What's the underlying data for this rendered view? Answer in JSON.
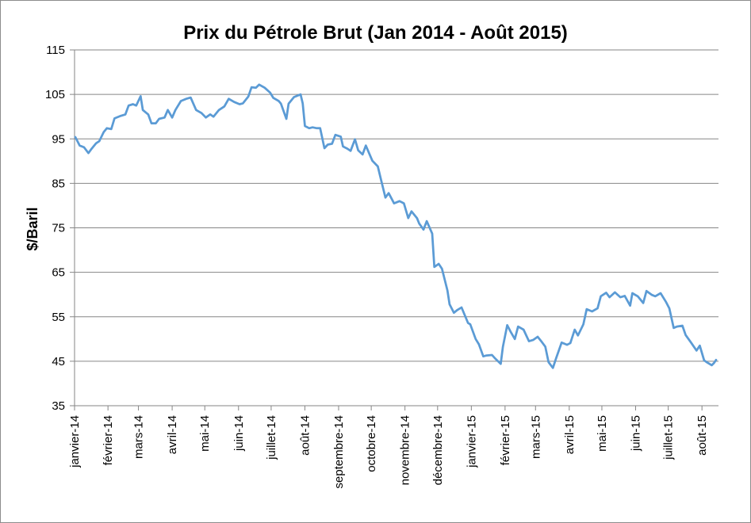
{
  "chart_data": {
    "type": "line",
    "title": "Prix du Pétrole Brut (Jan 2014 - Août 2015)",
    "xlabel": "",
    "ylabel": "$/Baril",
    "ylim": [
      35,
      115
    ],
    "yticks": [
      35,
      45,
      55,
      65,
      75,
      85,
      95,
      105,
      115
    ],
    "grid": true,
    "legend": "none",
    "line_color": "#5b9bd5",
    "xlim": [
      "2014-01-02",
      "2015-08-14"
    ],
    "x_tick_labels": [
      {
        "label": "janvier-14",
        "date": "2014-01-01"
      },
      {
        "label": "février-14",
        "date": "2014-02-01"
      },
      {
        "label": "mars-14",
        "date": "2014-03-01"
      },
      {
        "label": "avril-14",
        "date": "2014-04-01"
      },
      {
        "label": "mai-14",
        "date": "2014-05-01"
      },
      {
        "label": "juin-14",
        "date": "2014-06-01"
      },
      {
        "label": "juillet-14",
        "date": "2014-07-01"
      },
      {
        "label": "août-14",
        "date": "2014-08-01"
      },
      {
        "label": "septembre-14",
        "date": "2014-09-01"
      },
      {
        "label": "octobre-14",
        "date": "2014-10-01"
      },
      {
        "label": "novembre-14",
        "date": "2014-11-01"
      },
      {
        "label": "décembre-14",
        "date": "2014-12-01"
      },
      {
        "label": "janvier-15",
        "date": "2015-01-01"
      },
      {
        "label": "février-15",
        "date": "2015-02-01"
      },
      {
        "label": "mars-15",
        "date": "2015-03-01"
      },
      {
        "label": "avril-15",
        "date": "2015-04-01"
      },
      {
        "label": "mai-15",
        "date": "2015-05-01"
      },
      {
        "label": "juin-15",
        "date": "2015-06-01"
      },
      {
        "label": "juillet-15",
        "date": "2015-07-01"
      },
      {
        "label": "août-15",
        "date": "2015-08-01"
      }
    ],
    "series": [
      {
        "points": [
          [
            "2014-01-02",
            95.4
          ],
          [
            "2014-01-06",
            93.5
          ],
          [
            "2014-01-10",
            93.1
          ],
          [
            "2014-01-14",
            91.8
          ],
          [
            "2014-01-17",
            92.8
          ],
          [
            "2014-01-21",
            94.0
          ],
          [
            "2014-01-24",
            94.5
          ],
          [
            "2014-01-28",
            96.5
          ],
          [
            "2014-01-31",
            97.4
          ],
          [
            "2014-02-04",
            97.2
          ],
          [
            "2014-02-07",
            99.6
          ],
          [
            "2014-02-12",
            100.1
          ],
          [
            "2014-02-17",
            100.5
          ],
          [
            "2014-02-20",
            102.5
          ],
          [
            "2014-02-24",
            102.8
          ],
          [
            "2014-02-27",
            102.5
          ],
          [
            "2014-03-03",
            104.6
          ],
          [
            "2014-03-05",
            101.5
          ],
          [
            "2014-03-10",
            100.5
          ],
          [
            "2014-03-13",
            98.5
          ],
          [
            "2014-03-17",
            98.5
          ],
          [
            "2014-03-20",
            99.5
          ],
          [
            "2014-03-25",
            99.8
          ],
          [
            "2014-03-28",
            101.5
          ],
          [
            "2014-04-01",
            99.8
          ],
          [
            "2014-04-04",
            101.5
          ],
          [
            "2014-04-09",
            103.5
          ],
          [
            "2014-04-14",
            104.0
          ],
          [
            "2014-04-18",
            104.3
          ],
          [
            "2014-04-23",
            101.5
          ],
          [
            "2014-04-28",
            100.8
          ],
          [
            "2014-05-02",
            99.8
          ],
          [
            "2014-05-06",
            100.5
          ],
          [
            "2014-05-09",
            100.0
          ],
          [
            "2014-05-14",
            101.5
          ],
          [
            "2014-05-19",
            102.3
          ],
          [
            "2014-05-23",
            104.0
          ],
          [
            "2014-05-28",
            103.3
          ],
          [
            "2014-06-02",
            102.8
          ],
          [
            "2014-06-05",
            103.0
          ],
          [
            "2014-06-10",
            104.5
          ],
          [
            "2014-06-13",
            106.6
          ],
          [
            "2014-06-17",
            106.5
          ],
          [
            "2014-06-20",
            107.2
          ],
          [
            "2014-06-25",
            106.5
          ],
          [
            "2014-06-30",
            105.4
          ],
          [
            "2014-07-03",
            104.2
          ],
          [
            "2014-07-08",
            103.5
          ],
          [
            "2014-07-10",
            102.9
          ],
          [
            "2014-07-15",
            99.5
          ],
          [
            "2014-07-17",
            102.9
          ],
          [
            "2014-07-22",
            104.4
          ],
          [
            "2014-07-25",
            104.7
          ],
          [
            "2014-07-28",
            105.0
          ],
          [
            "2014-07-30",
            103.0
          ],
          [
            "2014-08-01",
            97.9
          ],
          [
            "2014-08-05",
            97.4
          ],
          [
            "2014-08-08",
            97.6
          ],
          [
            "2014-08-12",
            97.4
          ],
          [
            "2014-08-15",
            97.4
          ],
          [
            "2014-08-19",
            92.9
          ],
          [
            "2014-08-22",
            93.7
          ],
          [
            "2014-08-26",
            93.9
          ],
          [
            "2014-08-29",
            95.9
          ],
          [
            "2014-09-03",
            95.5
          ],
          [
            "2014-09-05",
            93.3
          ],
          [
            "2014-09-09",
            92.8
          ],
          [
            "2014-09-12",
            92.3
          ],
          [
            "2014-09-16",
            94.9
          ],
          [
            "2014-09-19",
            92.4
          ],
          [
            "2014-09-23",
            91.5
          ],
          [
            "2014-09-26",
            93.5
          ],
          [
            "2014-09-30",
            91.2
          ],
          [
            "2014-10-02",
            90.1
          ],
          [
            "2014-10-07",
            88.8
          ],
          [
            "2014-10-10",
            85.8
          ],
          [
            "2014-10-14",
            81.8
          ],
          [
            "2014-10-17",
            82.8
          ],
          [
            "2014-10-22",
            80.5
          ],
          [
            "2014-10-27",
            81.0
          ],
          [
            "2014-10-31",
            80.5
          ],
          [
            "2014-11-04",
            77.2
          ],
          [
            "2014-11-07",
            78.7
          ],
          [
            "2014-11-12",
            77.2
          ],
          [
            "2014-11-14",
            76.0
          ],
          [
            "2014-11-18",
            74.6
          ],
          [
            "2014-11-21",
            76.5
          ],
          [
            "2014-11-26",
            73.7
          ],
          [
            "2014-11-28",
            66.2
          ],
          [
            "2014-12-02",
            66.9
          ],
          [
            "2014-12-05",
            65.8
          ],
          [
            "2014-12-10",
            60.9
          ],
          [
            "2014-12-12",
            57.8
          ],
          [
            "2014-12-16",
            55.9
          ],
          [
            "2014-12-19",
            56.5
          ],
          [
            "2014-12-23",
            57.1
          ],
          [
            "2014-12-29",
            53.6
          ],
          [
            "2014-12-31",
            53.3
          ],
          [
            "2015-01-05",
            50.0
          ],
          [
            "2015-01-08",
            48.8
          ],
          [
            "2015-01-12",
            46.1
          ],
          [
            "2015-01-15",
            46.3
          ],
          [
            "2015-01-20",
            46.4
          ],
          [
            "2015-01-23",
            45.6
          ],
          [
            "2015-01-28",
            44.4
          ],
          [
            "2015-01-30",
            48.2
          ],
          [
            "2015-02-03",
            53.1
          ],
          [
            "2015-02-06",
            51.7
          ],
          [
            "2015-02-10",
            50.0
          ],
          [
            "2015-02-13",
            52.8
          ],
          [
            "2015-02-18",
            52.1
          ],
          [
            "2015-02-23",
            49.5
          ],
          [
            "2015-02-27",
            49.8
          ],
          [
            "2015-03-03",
            50.5
          ],
          [
            "2015-03-06",
            49.6
          ],
          [
            "2015-03-10",
            48.3
          ],
          [
            "2015-03-13",
            44.8
          ],
          [
            "2015-03-17",
            43.5
          ],
          [
            "2015-03-20",
            45.7
          ],
          [
            "2015-03-25",
            49.2
          ],
          [
            "2015-03-30",
            48.7
          ],
          [
            "2015-04-02",
            49.1
          ],
          [
            "2015-04-06",
            52.1
          ],
          [
            "2015-04-09",
            50.8
          ],
          [
            "2015-04-14",
            53.3
          ],
          [
            "2015-04-17",
            56.7
          ],
          [
            "2015-04-22",
            56.2
          ],
          [
            "2015-04-27",
            56.9
          ],
          [
            "2015-04-30",
            59.6
          ],
          [
            "2015-05-05",
            60.4
          ],
          [
            "2015-05-08",
            59.4
          ],
          [
            "2015-05-13",
            60.5
          ],
          [
            "2015-05-18",
            59.4
          ],
          [
            "2015-05-22",
            59.7
          ],
          [
            "2015-05-27",
            57.5
          ],
          [
            "2015-05-29",
            60.3
          ],
          [
            "2015-06-03",
            59.6
          ],
          [
            "2015-06-08",
            58.1
          ],
          [
            "2015-06-11",
            60.8
          ],
          [
            "2015-06-16",
            59.9
          ],
          [
            "2015-06-19",
            59.6
          ],
          [
            "2015-06-24",
            60.3
          ],
          [
            "2015-06-29",
            58.3
          ],
          [
            "2015-07-02",
            56.9
          ],
          [
            "2015-07-06",
            52.5
          ],
          [
            "2015-07-09",
            52.8
          ],
          [
            "2015-07-14",
            53.0
          ],
          [
            "2015-07-17",
            50.9
          ],
          [
            "2015-07-22",
            49.2
          ],
          [
            "2015-07-27",
            47.4
          ],
          [
            "2015-07-30",
            48.5
          ],
          [
            "2015-08-03",
            45.2
          ],
          [
            "2015-08-06",
            44.7
          ],
          [
            "2015-08-10",
            44.1
          ],
          [
            "2015-08-12",
            44.6
          ],
          [
            "2015-08-14",
            45.3
          ]
        ]
      }
    ]
  }
}
